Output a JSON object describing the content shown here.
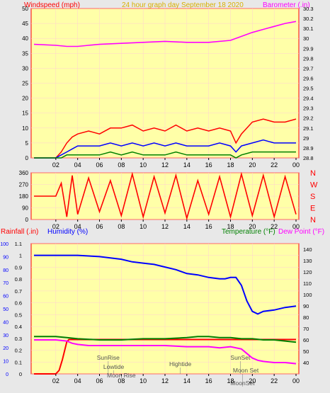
{
  "header": {
    "windspeed_label": "Windspeed (mph)",
    "title": "24 hour graph day   September 18 2020",
    "barometer_label": "Barometer (.in)"
  },
  "colors": {
    "background": "#e8e8e8",
    "plot_bg": "#ffffa8",
    "wind_speed": "#ff0000",
    "wind_avg": "#0000ff",
    "wind_low": "#008000",
    "barometer": "#ff00ff",
    "header_left": "#ff0000",
    "header_title": "#d8b000",
    "rain": "#ff0000",
    "humidity": "#0000ff",
    "temperature": "#008000",
    "dew_point": "#ff00ff",
    "grid": "#ff9999"
  },
  "chart_data": [
    {
      "type": "line",
      "title": "24 hour graph day   September 18 2020",
      "x_ticks": [
        "02",
        "04",
        "06",
        "08",
        "10",
        "12",
        "14",
        "16",
        "18",
        "20",
        "22",
        "00"
      ],
      "ylabel_left": "Windspeed (mph)",
      "ylim_left": [
        0,
        50
      ],
      "y_ticks_left": [
        "0",
        "5",
        "10",
        "15",
        "20",
        "25",
        "30",
        "35",
        "40",
        "45",
        "50"
      ],
      "ylabel_right": "Barometer (.in)",
      "ylim_right": [
        28.8,
        30.3
      ],
      "y_ticks_right": [
        "28.8",
        "28.9",
        "29",
        "29.1",
        "29.2",
        "29.3",
        "29.4",
        "29.5",
        "29.6",
        "29.7",
        "29.8",
        "29.9",
        "30",
        "30.1",
        "30.2",
        "30.3"
      ],
      "series": [
        {
          "name": "Windspeed (mph)",
          "axis": "left",
          "color": "#ff0000",
          "x": [
            0,
            1,
            1.5,
            2,
            2.5,
            3,
            3.5,
            4,
            5,
            6,
            7,
            8,
            9,
            10,
            11,
            12,
            13,
            14,
            15,
            16,
            17,
            18,
            18.5,
            19,
            20,
            21,
            22,
            23,
            24
          ],
          "y": [
            0,
            0,
            0,
            0,
            2,
            5,
            7,
            8,
            9,
            8,
            10,
            10,
            11,
            9,
            10,
            9,
            11,
            9,
            10,
            9,
            10,
            9,
            5,
            8,
            12,
            13,
            12,
            12,
            13
          ]
        },
        {
          "name": "Average windspeed",
          "axis": "left",
          "color": "#0000ff",
          "x": [
            0,
            1,
            1.5,
            2,
            2.5,
            3,
            3.5,
            4,
            5,
            6,
            7,
            8,
            9,
            10,
            11,
            12,
            13,
            14,
            15,
            16,
            17,
            18,
            18.5,
            19,
            20,
            21,
            22,
            23,
            24
          ],
          "y": [
            0,
            0,
            0,
            0,
            1,
            2,
            3,
            4,
            4,
            4,
            5,
            4,
            5,
            4,
            5,
            4,
            5,
            4,
            4,
            4,
            5,
            4,
            2,
            4,
            5,
            6,
            5,
            5,
            5
          ]
        },
        {
          "name": "Lowest windspeed",
          "axis": "left",
          "color": "#008000",
          "x": [
            0,
            1,
            1.5,
            2,
            2.5,
            3,
            3.5,
            4,
            5,
            6,
            7,
            8,
            9,
            10,
            11,
            12,
            13,
            14,
            15,
            16,
            17,
            18,
            18.5,
            19,
            20,
            21,
            22,
            23,
            24
          ],
          "y": [
            0,
            0,
            0,
            0,
            0,
            1,
            1,
            1,
            1,
            1,
            2,
            1,
            2,
            1,
            1,
            1,
            2,
            1,
            1,
            1,
            1,
            1,
            0,
            1,
            2,
            2,
            2,
            2,
            2
          ]
        },
        {
          "name": "Barometer (.in)",
          "axis": "right",
          "color": "#ff00ff",
          "x": [
            0,
            2,
            3,
            4,
            5,
            6,
            8,
            10,
            12,
            14,
            16,
            18,
            19,
            20,
            21,
            22,
            23,
            24
          ],
          "y": [
            29.94,
            29.93,
            29.92,
            29.92,
            29.93,
            29.94,
            29.95,
            29.96,
            29.97,
            29.96,
            29.96,
            29.98,
            30.02,
            30.06,
            30.09,
            30.12,
            30.15,
            30.17
          ]
        }
      ]
    },
    {
      "type": "scatter",
      "x_ticks": [
        "02",
        "04",
        "06",
        "08",
        "10",
        "12",
        "14",
        "16",
        "18",
        "20",
        "22",
        "00"
      ],
      "ylim": [
        0,
        360
      ],
      "y_ticks": [
        "0",
        "90",
        "180",
        "270",
        "360"
      ],
      "right_compass": [
        "N",
        "W",
        "S",
        "E",
        "N"
      ],
      "series": [
        {
          "name": "Wind direction",
          "color": "#ff0000",
          "x": [
            0,
            1,
            2,
            2.5,
            3,
            3.5,
            4,
            5,
            6,
            7,
            8,
            9,
            10,
            11,
            12,
            13,
            14,
            15,
            16,
            17,
            18,
            19,
            20,
            21,
            22,
            23,
            24
          ],
          "y": [
            180,
            180,
            180,
            280,
            20,
            340,
            40,
            320,
            60,
            300,
            30,
            350,
            20,
            330,
            50,
            340,
            10,
            300,
            40,
            330,
            20,
            350,
            30,
            340,
            20,
            330,
            40
          ]
        }
      ]
    },
    {
      "type": "line",
      "x_ticks": [
        "02",
        "04",
        "06",
        "08",
        "10",
        "12",
        "14",
        "16",
        "18",
        "20",
        "22",
        "00"
      ],
      "ylabel_left_rain": "Rainfall (.in)",
      "ylabel_left_humidity": "Humidity (%)",
      "ylabel_right_temp": "Temperature (°F)",
      "ylabel_right_dew": "Dew Point (°F)",
      "rain_ticks": [
        "0",
        "0.1",
        "0.2",
        "0.3",
        "0.4",
        "0.5",
        "0.6",
        "0.7",
        "0.8",
        "0.9",
        "1",
        "1.1"
      ],
      "rain_ylim": [
        0,
        1.1
      ],
      "humidity_ticks": [
        "0",
        "10",
        "20",
        "30",
        "40",
        "50",
        "60",
        "70",
        "80",
        "90",
        "100"
      ],
      "humidity_ylim": [
        0,
        100
      ],
      "temp_ticks": [
        "40",
        "50",
        "60",
        "70",
        "80",
        "90",
        "100",
        "110",
        "120",
        "130",
        "140"
      ],
      "temp_ylim": [
        30,
        145
      ],
      "series": [
        {
          "name": "Rainfall (.in)",
          "axis": "rain",
          "color": "#ff0000",
          "x": [
            0,
            2,
            2.3,
            2.6,
            3,
            3.2,
            3.5,
            4,
            6,
            8,
            10,
            12,
            14,
            16,
            18,
            20,
            22,
            24
          ],
          "y": [
            0,
            0,
            0.03,
            0.12,
            0.27,
            0.29,
            0.29,
            0.29,
            0.29,
            0.29,
            0.29,
            0.29,
            0.29,
            0.29,
            0.29,
            0.29,
            0.29,
            0.29
          ]
        },
        {
          "name": "Humidity (%)",
          "axis": "humidity",
          "color": "#0000ff",
          "x": [
            0,
            2,
            4,
            6,
            7,
            8,
            9,
            10,
            11,
            12,
            13,
            14,
            15,
            16,
            17,
            17.5,
            18,
            18.5,
            19,
            19.5,
            20,
            20.5,
            21,
            22,
            23,
            24
          ],
          "y": [
            91,
            91,
            91,
            90,
            89,
            88,
            86,
            85,
            84,
            82,
            80,
            77,
            76,
            74,
            73,
            73,
            74,
            74,
            68,
            56,
            48,
            46,
            48,
            49,
            51,
            52
          ]
        },
        {
          "name": "Temperature (°F)",
          "axis": "temp",
          "color": "#008000",
          "x": [
            0,
            2,
            3,
            4,
            6,
            8,
            10,
            12,
            14,
            15,
            16,
            17,
            18,
            19,
            20,
            21,
            22,
            23,
            24
          ],
          "y": [
            63,
            63,
            62,
            61,
            60,
            60,
            61,
            61,
            62,
            63,
            63,
            62,
            62,
            61,
            61,
            60,
            60,
            59,
            58
          ]
        },
        {
          "name": "Dew Point (°F)",
          "axis": "temp",
          "color": "#ff00ff",
          "x": [
            0,
            2,
            3,
            3.5,
            4,
            5,
            6,
            8,
            10,
            12,
            14,
            16,
            17,
            18,
            19,
            19.5,
            20,
            20.5,
            21,
            22,
            23,
            24
          ],
          "y": [
            60,
            60,
            59,
            57,
            56,
            55,
            55,
            55,
            55,
            55,
            54,
            54,
            53,
            54,
            52,
            48,
            44,
            42,
            41,
            40,
            40,
            39
          ]
        }
      ],
      "annotations": [
        {
          "label": "SunRise",
          "x": 6.8
        },
        {
          "label": "Lowtide",
          "x": 7.3
        },
        {
          "label": "Moon Rise",
          "x": 8.0
        },
        {
          "label": "Hightide",
          "x": 13.4
        },
        {
          "label": "SunSet",
          "x": 18.9
        },
        {
          "label": "Moon Set",
          "x": 19.4
        },
        {
          "label": "MoonSet",
          "x": 19.1
        }
      ]
    }
  ]
}
